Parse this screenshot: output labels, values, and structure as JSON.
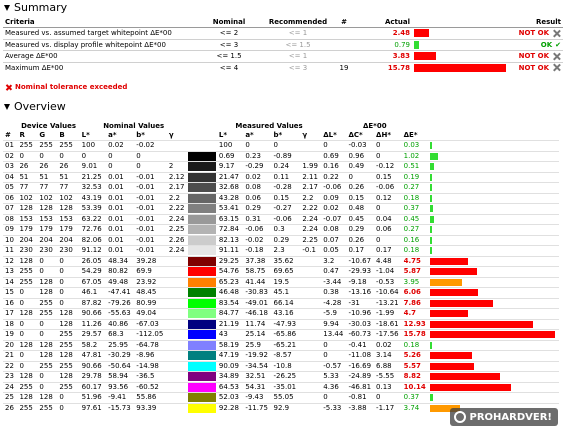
{
  "summary": {
    "title": "Summary",
    "headers": {
      "criteria": "Criteria",
      "nominal": "Nominal",
      "recommended": "Recommended",
      "hash": "#",
      "actual": "Actual",
      "result": "Result"
    },
    "rows": [
      {
        "criteria": "Measured vs. assumed target whitepoint ΔE*00",
        "nominal": "<= 2",
        "recommended": "<= 1",
        "count": "",
        "actual": "2.48",
        "ok": false,
        "result": "NOT OK",
        "bar": 0.16
      },
      {
        "criteria": "Measured vs. display profile whitepoint ΔE*00",
        "nominal": "<= 3",
        "recommended": "<= 1.5",
        "count": "",
        "actual": "0.79",
        "ok": true,
        "result": "OK",
        "bar": 0.05
      },
      {
        "criteria": "Average ΔE*00",
        "nominal": "<= 1.5",
        "recommended": "<= 1",
        "count": "",
        "actual": "3.83",
        "ok": false,
        "result": "NOT OK",
        "bar": 0.24
      },
      {
        "criteria": "Maximum ΔE*00",
        "nominal": "<= 4",
        "recommended": "<= 3",
        "count": "19",
        "actual": "15.78",
        "ok": false,
        "result": "NOT OK",
        "bar": 1.0
      }
    ],
    "warning": "Nominal tolerance exceeded"
  },
  "overview": {
    "title": "Overview",
    "group_headers": {
      "device": "Device Values",
      "nominal": "Nominal Values",
      "measured": "Measured Values",
      "de": "ΔE*00"
    },
    "col_headers": {
      "idx": "#",
      "r": "R",
      "g": "G",
      "b": "B",
      "L": "L*",
      "a": "a*",
      "bb": "b*",
      "gamma": "γ",
      "mL": "L*",
      "ma": "a*",
      "mb": "b*",
      "mgamma": "γ",
      "dL": "ΔL*",
      "dC": "ΔC*",
      "dH": "ΔH*",
      "dE": "ΔE*"
    },
    "rows": [
      [
        "01",
        "255",
        "255",
        "255",
        "100",
        "0.02",
        "-0.02",
        "",
        "#ffffff",
        "100",
        "0",
        "0",
        "",
        "0",
        "-0.03",
        "0",
        "0.03"
      ],
      [
        "02",
        "0",
        "0",
        "0",
        "0",
        "0",
        "0",
        "",
        "#000000",
        "0.69",
        "0.23",
        "-0.89",
        "",
        "0.69",
        "0.96",
        "0",
        "1.02"
      ],
      [
        "03",
        "26",
        "26",
        "26",
        "9.01",
        "0",
        "0",
        "2",
        "#1a1a1a",
        "9.17",
        "-0.29",
        "0.24",
        "1.99",
        "0.16",
        "0.49",
        "-0.12",
        "0.51"
      ],
      [
        "04",
        "51",
        "51",
        "51",
        "21.25",
        "0.01",
        "-0.01",
        "2.12",
        "#333333",
        "21.47",
        "0.02",
        "0.11",
        "2.11",
        "0.22",
        "0",
        "0.15",
        "0.19"
      ],
      [
        "05",
        "77",
        "77",
        "77",
        "32.53",
        "0.01",
        "-0.01",
        "2.17",
        "#4d4d4d",
        "32.68",
        "0.08",
        "-0.28",
        "2.17",
        "-0.06",
        "0.26",
        "-0.06",
        "0.27"
      ],
      [
        "06",
        "102",
        "102",
        "102",
        "43.19",
        "0.01",
        "-0.01",
        "2.2",
        "#666666",
        "43.28",
        "0.06",
        "0.15",
        "2.2",
        "0.09",
        "0.15",
        "0.12",
        "0.18"
      ],
      [
        "07",
        "128",
        "128",
        "128",
        "53.39",
        "0.01",
        "-0.01",
        "2.22",
        "#808080",
        "53.41",
        "0.29",
        "-0.27",
        "2.22",
        "0.02",
        "0.48",
        "0",
        "0.37"
      ],
      [
        "08",
        "153",
        "153",
        "153",
        "63.22",
        "0.01",
        "-0.01",
        "2.24",
        "#999999",
        "63.15",
        "0.31",
        "-0.06",
        "2.24",
        "-0.07",
        "0.45",
        "0.04",
        "0.45"
      ],
      [
        "09",
        "179",
        "179",
        "179",
        "72.76",
        "0.01",
        "-0.01",
        "2.25",
        "#b3b3b3",
        "72.84",
        "-0.06",
        "0.3",
        "2.24",
        "0.08",
        "0.29",
        "0.06",
        "0.27"
      ],
      [
        "10",
        "204",
        "204",
        "204",
        "82.06",
        "0.01",
        "-0.01",
        "2.26",
        "#cccccc",
        "82.13",
        "-0.02",
        "0.29",
        "2.25",
        "0.07",
        "0.26",
        "0",
        "0.16"
      ],
      [
        "11",
        "230",
        "230",
        "230",
        "91.12",
        "0.01",
        "-0.01",
        "2.24",
        "#e6e6e6",
        "91.11",
        "-0.18",
        "2.3",
        "-0.1",
        "0.05",
        "0.17",
        "0.17",
        "0.18"
      ],
      [
        "12",
        "128",
        "0",
        "0",
        "26.05",
        "48.34",
        "39.28",
        "",
        "#800000",
        "29.25",
        "37.38",
        "35.62",
        "",
        "3.2",
        "-10.67",
        "4.48",
        "4.75"
      ],
      [
        "13",
        "255",
        "0",
        "0",
        "54.29",
        "80.82",
        "69.9",
        "",
        "#ff0000",
        "54.76",
        "58.75",
        "69.65",
        "",
        "0.47",
        "-29.93",
        "-1.04",
        "5.87"
      ],
      [
        "14",
        "255",
        "128",
        "0",
        "67.05",
        "49.48",
        "23.92",
        "",
        "#ff8000",
        "65.23",
        "41.44",
        "19.5",
        "",
        "-3.44",
        "-9.18",
        "-0.53",
        "3.95"
      ],
      [
        "15",
        "0",
        "128",
        "0",
        "46.1",
        "-47.41",
        "48.45",
        "",
        "#008000",
        "46.48",
        "-30.83",
        "45.1",
        "",
        "0.38",
        "-13.16",
        "-10.64",
        "6.06"
      ],
      [
        "16",
        "0",
        "255",
        "0",
        "87.82",
        "-79.26",
        "80.99",
        "",
        "#00ff00",
        "83.54",
        "-49.01",
        "66.14",
        "",
        "-4.28",
        "-31",
        "-13.21",
        "7.86"
      ],
      [
        "17",
        "128",
        "255",
        "128",
        "90.66",
        "-55.63",
        "49.04",
        "",
        "#80ff80",
        "84.77",
        "-46.18",
        "43.16",
        "",
        "-5.9",
        "-10.96",
        "-1.99",
        "4.7"
      ],
      [
        "18",
        "0",
        "0",
        "128",
        "11.26",
        "40.86",
        "-67.03",
        "",
        "#000080",
        "21.19",
        "11.74",
        "-47.93",
        "",
        "9.94",
        "-30.03",
        "-18.61",
        "12.93"
      ],
      [
        "19",
        "0",
        "0",
        "255",
        "29.57",
        "68.3",
        "-112.05",
        "",
        "#0000ff",
        "43",
        "25.14",
        "-65.86",
        "",
        "13.44",
        "-60.73",
        "-17.56",
        "15.78"
      ],
      [
        "20",
        "128",
        "128",
        "255",
        "58.2",
        "25.95",
        "-64.78",
        "",
        "#8080ff",
        "58.19",
        "25.9",
        "-65.21",
        "",
        "0",
        "-0.41",
        "0.02",
        "0.18"
      ],
      [
        "21",
        "0",
        "128",
        "128",
        "47.81",
        "-30.29",
        "-8.96",
        "",
        "#008080",
        "47.19",
        "-19.92",
        "-8.57",
        "",
        "0",
        "-11.08",
        "3.14",
        "5.26"
      ],
      [
        "22",
        "0",
        "255",
        "255",
        "90.66",
        "-50.64",
        "-14.98",
        "",
        "#00ffff",
        "90.09",
        "-34.54",
        "-10.8",
        "",
        "-0.57",
        "-16.69",
        "6.88",
        "5.57"
      ],
      [
        "23",
        "128",
        "0",
        "128",
        "29.78",
        "58.94",
        "-36.5",
        "",
        "#800080",
        "34.89",
        "32.51",
        "-26.25",
        "",
        "5.33",
        "-24.89",
        "-5.55",
        "8.82"
      ],
      [
        "24",
        "255",
        "0",
        "255",
        "60.17",
        "93.56",
        "-60.52",
        "",
        "#ff00ff",
        "64.53",
        "54.31",
        "-35.01",
        "",
        "4.36",
        "-46.81",
        "0.13",
        "10.14"
      ],
      [
        "25",
        "128",
        "128",
        "0",
        "51.96",
        "-9.41",
        "55.86",
        "",
        "#808000",
        "52.03",
        "-9.43",
        "55.05",
        "",
        "0",
        "-0.81",
        "0",
        "0.37"
      ],
      [
        "26",
        "255",
        "255",
        "0",
        "97.61",
        "-15.73",
        "93.39",
        "",
        "#ffff00",
        "92.28",
        "-11.75",
        "92.9",
        "",
        "-5.33",
        "-3.88",
        "-1.17",
        "3.74"
      ]
    ],
    "bar_scale_max": 15.78
  },
  "watermark": "PROHARDVER!",
  "colors": {
    "red": "#e00000",
    "green": "#00a000",
    "bar_red": "#ff0000",
    "bar_green": "#33dd33",
    "bar_orange": "#ff9900"
  }
}
